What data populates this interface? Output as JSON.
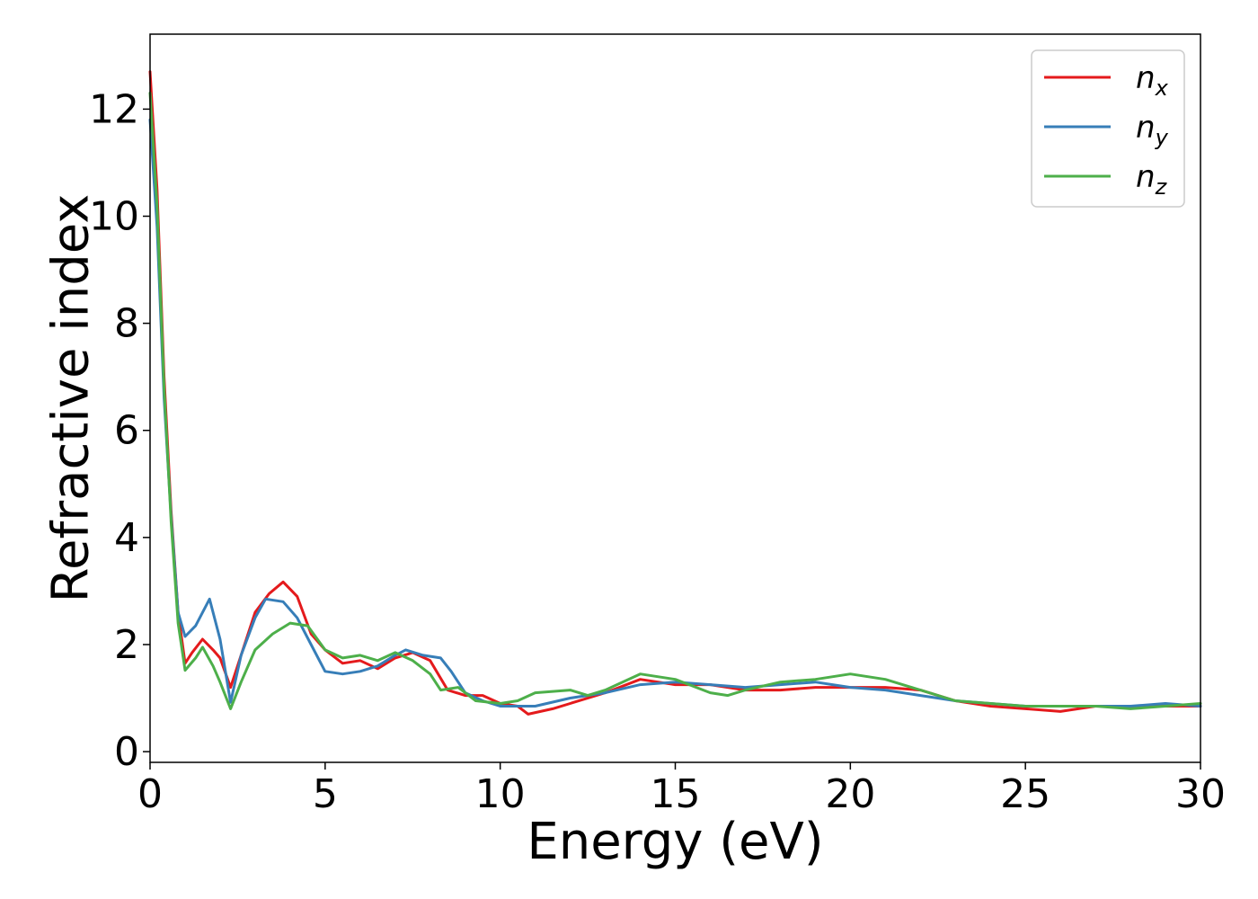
{
  "chart_data": {
    "type": "line",
    "title": "",
    "xlabel": "Energy (eV)",
    "ylabel": "Refractive index",
    "xlim": [
      0,
      30
    ],
    "ylim": [
      -0.2,
      13.4
    ],
    "xticks": [
      0,
      5,
      10,
      15,
      20,
      25,
      30
    ],
    "yticks": [
      0,
      2,
      4,
      6,
      8,
      10,
      12
    ],
    "grid": false,
    "legend_position": "top-right",
    "series": [
      {
        "name": "n",
        "subscript": "x",
        "color": "#e41a1c",
        "points": [
          [
            0,
            12.7
          ],
          [
            0.2,
            10.5
          ],
          [
            0.4,
            7.0
          ],
          [
            0.6,
            4.5
          ],
          [
            0.8,
            2.6
          ],
          [
            1.0,
            1.65
          ],
          [
            1.2,
            1.85
          ],
          [
            1.5,
            2.1
          ],
          [
            1.8,
            1.9
          ],
          [
            2.0,
            1.75
          ],
          [
            2.3,
            1.2
          ],
          [
            2.6,
            1.8
          ],
          [
            3.0,
            2.6
          ],
          [
            3.4,
            2.95
          ],
          [
            3.8,
            3.17
          ],
          [
            4.2,
            2.9
          ],
          [
            4.6,
            2.2
          ],
          [
            5.0,
            1.9
          ],
          [
            5.5,
            1.65
          ],
          [
            6.0,
            1.7
          ],
          [
            6.5,
            1.55
          ],
          [
            7.0,
            1.75
          ],
          [
            7.5,
            1.85
          ],
          [
            8.0,
            1.7
          ],
          [
            8.5,
            1.15
          ],
          [
            9.0,
            1.05
          ],
          [
            9.5,
            1.05
          ],
          [
            10.0,
            0.9
          ],
          [
            10.5,
            0.85
          ],
          [
            10.8,
            0.7
          ],
          [
            11.5,
            0.8
          ],
          [
            12.0,
            0.9
          ],
          [
            13.0,
            1.1
          ],
          [
            14.0,
            1.35
          ],
          [
            15.0,
            1.25
          ],
          [
            16.0,
            1.25
          ],
          [
            17.0,
            1.15
          ],
          [
            18.0,
            1.15
          ],
          [
            19.0,
            1.2
          ],
          [
            20.0,
            1.2
          ],
          [
            21.0,
            1.2
          ],
          [
            22.0,
            1.15
          ],
          [
            23.0,
            0.95
          ],
          [
            24.0,
            0.85
          ],
          [
            25.0,
            0.8
          ],
          [
            26.0,
            0.75
          ],
          [
            27.0,
            0.85
          ],
          [
            28.0,
            0.85
          ],
          [
            29.0,
            0.85
          ],
          [
            30.0,
            0.85
          ]
        ]
      },
      {
        "name": "n",
        "subscript": "y",
        "color": "#377eb8",
        "points": [
          [
            0,
            11.8
          ],
          [
            0.2,
            9.8
          ],
          [
            0.4,
            6.6
          ],
          [
            0.6,
            4.4
          ],
          [
            0.8,
            2.6
          ],
          [
            1.0,
            2.15
          ],
          [
            1.3,
            2.35
          ],
          [
            1.7,
            2.85
          ],
          [
            2.0,
            2.1
          ],
          [
            2.3,
            0.92
          ],
          [
            2.6,
            1.8
          ],
          [
            3.0,
            2.5
          ],
          [
            3.3,
            2.85
          ],
          [
            3.8,
            2.8
          ],
          [
            4.2,
            2.5
          ],
          [
            4.6,
            2.0
          ],
          [
            5.0,
            1.5
          ],
          [
            5.5,
            1.45
          ],
          [
            6.0,
            1.5
          ],
          [
            6.5,
            1.6
          ],
          [
            7.0,
            1.8
          ],
          [
            7.3,
            1.9
          ],
          [
            7.8,
            1.8
          ],
          [
            8.3,
            1.75
          ],
          [
            8.6,
            1.5
          ],
          [
            9.0,
            1.1
          ],
          [
            9.5,
            0.95
          ],
          [
            10.0,
            0.85
          ],
          [
            10.5,
            0.85
          ],
          [
            11.0,
            0.85
          ],
          [
            12.0,
            1.0
          ],
          [
            13.0,
            1.1
          ],
          [
            14.0,
            1.25
          ],
          [
            15.0,
            1.3
          ],
          [
            16.0,
            1.25
          ],
          [
            17.0,
            1.2
          ],
          [
            18.0,
            1.25
          ],
          [
            19.0,
            1.3
          ],
          [
            20.0,
            1.2
          ],
          [
            21.0,
            1.15
          ],
          [
            22.0,
            1.05
          ],
          [
            23.0,
            0.95
          ],
          [
            24.0,
            0.9
          ],
          [
            25.0,
            0.85
          ],
          [
            26.0,
            0.85
          ],
          [
            27.0,
            0.85
          ],
          [
            28.0,
            0.85
          ],
          [
            29.0,
            0.9
          ],
          [
            30.0,
            0.85
          ]
        ]
      },
      {
        "name": "n",
        "subscript": "z",
        "color": "#4daf4a",
        "points": [
          [
            0,
            12.3
          ],
          [
            0.2,
            10.2
          ],
          [
            0.4,
            6.8
          ],
          [
            0.6,
            4.3
          ],
          [
            0.8,
            2.4
          ],
          [
            1.0,
            1.52
          ],
          [
            1.3,
            1.75
          ],
          [
            1.5,
            1.95
          ],
          [
            1.8,
            1.6
          ],
          [
            2.0,
            1.3
          ],
          [
            2.3,
            0.8
          ],
          [
            2.6,
            1.3
          ],
          [
            3.0,
            1.9
          ],
          [
            3.5,
            2.2
          ],
          [
            4.0,
            2.4
          ],
          [
            4.5,
            2.35
          ],
          [
            5.0,
            1.9
          ],
          [
            5.5,
            1.75
          ],
          [
            6.0,
            1.8
          ],
          [
            6.5,
            1.7
          ],
          [
            7.0,
            1.85
          ],
          [
            7.5,
            1.7
          ],
          [
            8.0,
            1.45
          ],
          [
            8.3,
            1.15
          ],
          [
            8.8,
            1.2
          ],
          [
            9.3,
            0.95
          ],
          [
            10.0,
            0.9
          ],
          [
            10.5,
            0.95
          ],
          [
            11.0,
            1.1
          ],
          [
            12.0,
            1.15
          ],
          [
            12.5,
            1.05
          ],
          [
            13.0,
            1.15
          ],
          [
            14.0,
            1.45
          ],
          [
            15.0,
            1.35
          ],
          [
            16.0,
            1.1
          ],
          [
            16.5,
            1.05
          ],
          [
            17.0,
            1.15
          ],
          [
            18.0,
            1.3
          ],
          [
            19.0,
            1.35
          ],
          [
            20.0,
            1.45
          ],
          [
            21.0,
            1.35
          ],
          [
            22.0,
            1.15
          ],
          [
            23.0,
            0.95
          ],
          [
            24.0,
            0.9
          ],
          [
            25.0,
            0.85
          ],
          [
            26.0,
            0.85
          ],
          [
            27.0,
            0.85
          ],
          [
            28.0,
            0.8
          ],
          [
            29.0,
            0.85
          ],
          [
            30.0,
            0.9
          ]
        ]
      }
    ]
  }
}
